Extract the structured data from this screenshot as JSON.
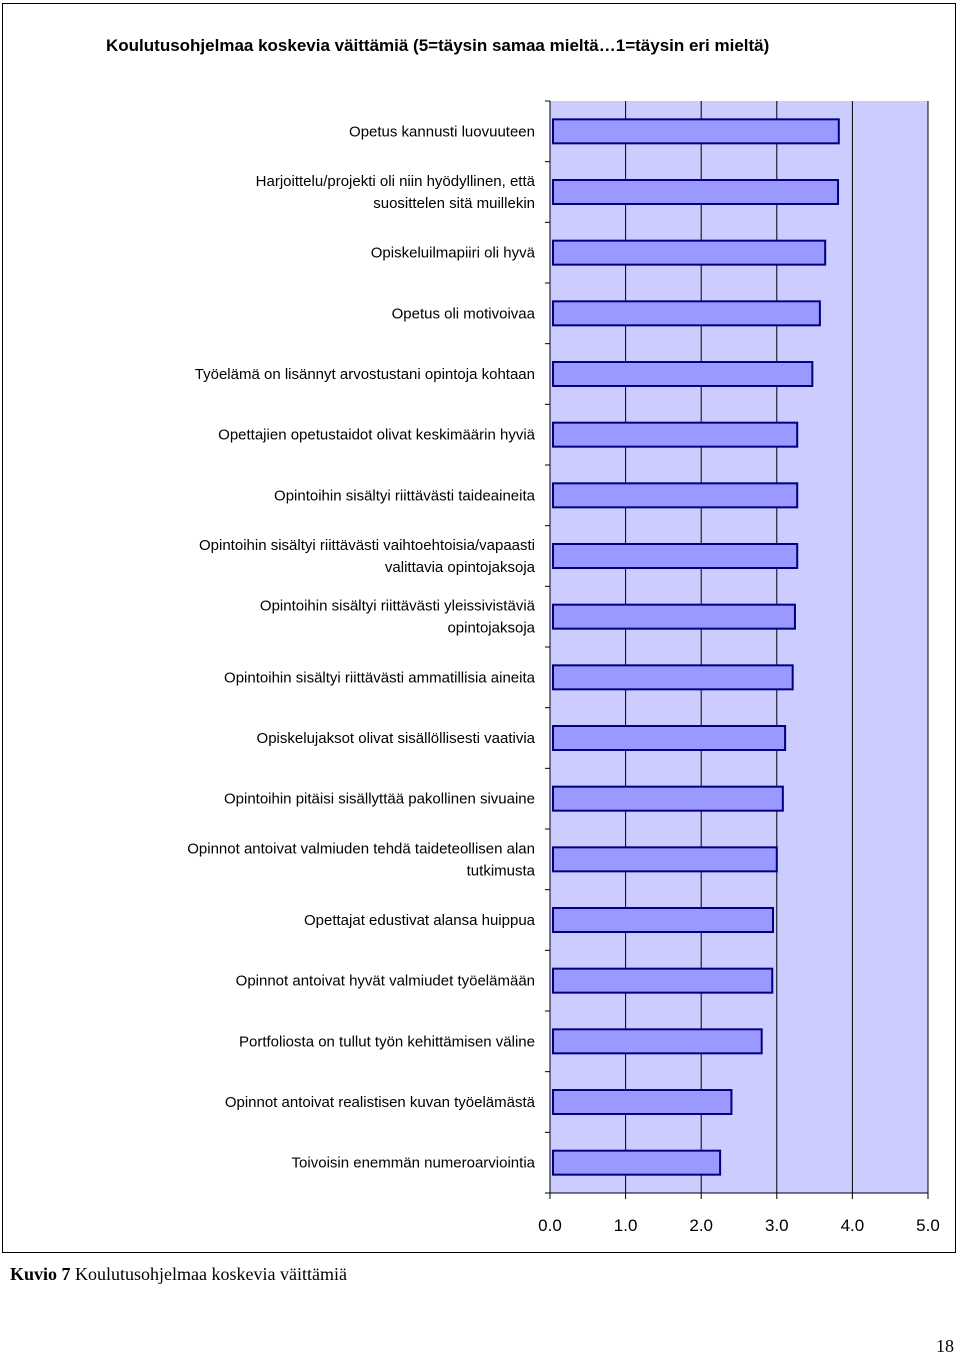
{
  "chart_data": {
    "type": "bar",
    "orientation": "horizontal",
    "title": "Koulutusohjelmaa koskevia väittämiä (5=täysin samaa mieltä…1=täysin eri mieltä)",
    "categories": [
      "Opetus kannusti luovuuteen",
      "Harjoittelu/projekti oli niin hyödyllinen, että suosittelen sitä muillekin",
      "Opiskeluilmapiiri oli hyvä",
      "Opetus oli motivoivaa",
      "Työelämä on lisännyt arvostustani opintoja kohtaan",
      "Opettajien opetustaidot olivat keskimäärin hyviä",
      "Opintoihin sisältyi riittävästi taideaineita",
      "Opintoihin sisältyi riittävästi vaihtoehtoisia/vapaasti valittavia opintojaksoja",
      "Opintoihin sisältyi riittävästi yleissivistäviä opintojaksoja",
      "Opintoihin sisältyi riittävästi ammatillisia aineita",
      "Opiskelujaksot olivat sisällöllisesti vaativia",
      "Opintoihin pitäisi sisällyttää pakollinen sivuaine",
      "Opinnot antoivat valmiuden tehdä taideteollisen alan tutkimusta",
      "Opettajat edustivat alansa huippua",
      "Opinnot antoivat hyvät valmiudet työelämään",
      "Portfoliosta on tullut työn kehittämisen väline",
      "Opinnot antoivat realistisen kuvan työelämästä",
      "Toivoisin enemmän numeroarviointia"
    ],
    "label_lines": [
      [
        "Opetus kannusti luovuuteen"
      ],
      [
        "Harjoittelu/projekti oli niin hyödyllinen, että",
        "suosittelen sitä muillekin"
      ],
      [
        "Opiskeluilmapiiri oli hyvä"
      ],
      [
        "Opetus oli motivoivaa"
      ],
      [
        "Työelämä on lisännyt arvostustani opintoja kohtaan"
      ],
      [
        "Opettajien opetustaidot olivat keskimäärin hyviä"
      ],
      [
        "Opintoihin sisältyi riittävästi taideaineita"
      ],
      [
        "Opintoihin sisältyi riittävästi vaihtoehtoisia/vapaasti",
        "valittavia opintojaksoja"
      ],
      [
        "Opintoihin sisältyi riittävästi yleissivistäviä",
        "opintojaksoja"
      ],
      [
        "Opintoihin sisältyi riittävästi ammatillisia aineita"
      ],
      [
        "Opiskelujaksot olivat sisällöllisesti vaativia"
      ],
      [
        "Opintoihin pitäisi sisällyttää pakollinen sivuaine"
      ],
      [
        "Opinnot antoivat valmiuden tehdä taideteollisen alan",
        "tutkimusta"
      ],
      [
        "Opettajat edustivat alansa huippua"
      ],
      [
        "Opinnot antoivat hyvät valmiudet työelämään"
      ],
      [
        "Portfoliosta on tullut työn kehittämisen väline"
      ],
      [
        "Opinnot antoivat realistisen kuvan työelämästä"
      ],
      [
        "Toivoisin enemmän numeroarviointia"
      ]
    ],
    "values": [
      3.82,
      3.81,
      3.64,
      3.57,
      3.47,
      3.27,
      3.27,
      3.27,
      3.24,
      3.21,
      3.11,
      3.08,
      3.0,
      2.95,
      2.94,
      2.8,
      2.4,
      2.25
    ],
    "xlim": [
      0,
      5
    ],
    "xticks": [
      "0.0",
      "1.0",
      "2.0",
      "3.0",
      "4.0",
      "5.0"
    ],
    "xlabel": "",
    "ylabel": "",
    "grid": "vertical",
    "legend": "none",
    "colors": {
      "bar_fill": "#9999ff",
      "bar_stroke": "#000080",
      "plot_background": "#ccccff",
      "gridline": "#000000"
    }
  },
  "caption": {
    "prefix": "Kuvio 7",
    "text": " Koulutusohjelmaa koskevia väittämiä"
  },
  "page_number": "18"
}
